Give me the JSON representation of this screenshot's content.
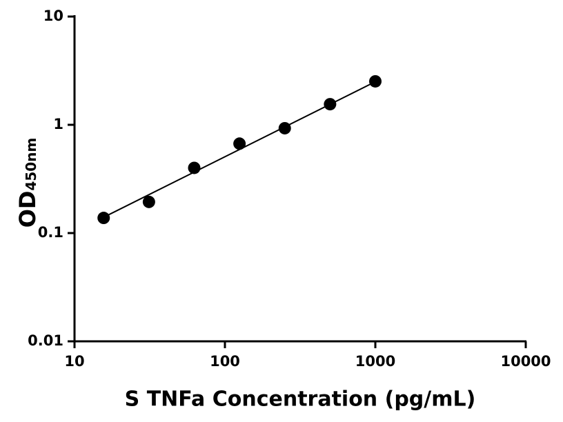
{
  "chart_data": {
    "type": "scatter",
    "xlabel": "S TNFa Concentration (pg/mL)",
    "ylabel": "OD",
    "ylabel_subscript": "450nm",
    "xscale": "log",
    "yscale": "log",
    "xlim": [
      10,
      10000
    ],
    "xticks": [
      10,
      100,
      1000,
      10000
    ],
    "ylim": [
      0.01,
      10
    ],
    "yticks": [
      0.01,
      0.1,
      1,
      10
    ],
    "series": [
      {
        "color": "#000000",
        "x": [
          15.625,
          31.25,
          62.5,
          125,
          250,
          500,
          1000
        ],
        "values": [
          0.138,
          0.194,
          0.4,
          0.67,
          0.93,
          1.55,
          2.52
        ]
      }
    ],
    "fit_line": {
      "color": "#000000",
      "x": [
        15.625,
        1000
      ],
      "values": [
        0.14,
        2.5
      ]
    }
  }
}
